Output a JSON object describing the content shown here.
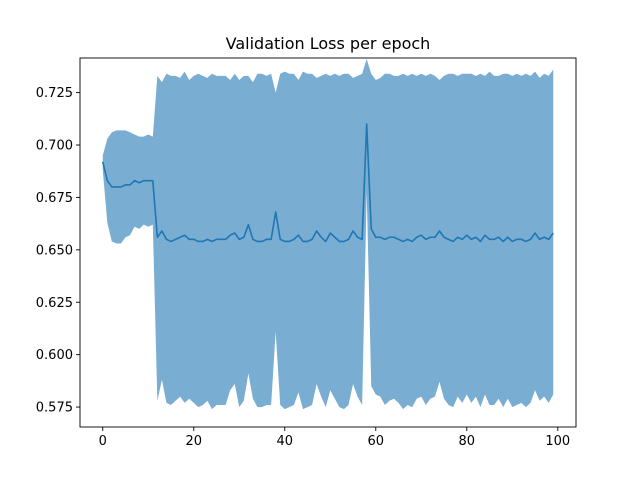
{
  "chart_data": {
    "type": "line",
    "title": "Validation Loss per epoch",
    "xlabel": "",
    "ylabel": "",
    "xlim": [
      -5,
      104
    ],
    "ylim": [
      0.5655,
      0.7415
    ],
    "xticks": [
      0,
      20,
      40,
      60,
      80,
      100
    ],
    "yticks": [
      0.575,
      0.6,
      0.625,
      0.65,
      0.675,
      0.7,
      0.725
    ],
    "ytick_labels": [
      "0.575",
      "0.600",
      "0.625",
      "0.650",
      "0.675",
      "0.700",
      "0.725"
    ],
    "grid": false,
    "legend": "none",
    "colors": {
      "line": "#1f77b4",
      "band": "#1f77b4",
      "band_alpha": 0.6
    },
    "series": [
      {
        "x": [
          0,
          1,
          2,
          3,
          4,
          5,
          6,
          7,
          8,
          9,
          10,
          11,
          12,
          13,
          14,
          15,
          16,
          17,
          18,
          19,
          20,
          21,
          22,
          23,
          24,
          25,
          26,
          27,
          28,
          29,
          30,
          31,
          32,
          33,
          34,
          35,
          36,
          37,
          38,
          39,
          40,
          41,
          42,
          43,
          44,
          45,
          46,
          47,
          48,
          49,
          50,
          51,
          52,
          53,
          54,
          55,
          56,
          57,
          58,
          59,
          60,
          61,
          62,
          63,
          64,
          65,
          66,
          67,
          68,
          69,
          70,
          71,
          72,
          73,
          74,
          75,
          76,
          77,
          78,
          79,
          80,
          81,
          82,
          83,
          84,
          85,
          86,
          87,
          88,
          89,
          90,
          91,
          92,
          93,
          94,
          95,
          96,
          97,
          98,
          99
        ],
        "mean": [
          0.692,
          0.683,
          0.68,
          0.68,
          0.68,
          0.681,
          0.681,
          0.683,
          0.682,
          0.683,
          0.683,
          0.683,
          0.656,
          0.659,
          0.655,
          0.654,
          0.655,
          0.656,
          0.657,
          0.655,
          0.655,
          0.654,
          0.654,
          0.655,
          0.654,
          0.655,
          0.655,
          0.655,
          0.657,
          0.658,
          0.655,
          0.656,
          0.662,
          0.655,
          0.654,
          0.654,
          0.655,
          0.655,
          0.668,
          0.655,
          0.654,
          0.654,
          0.655,
          0.657,
          0.654,
          0.654,
          0.655,
          0.659,
          0.656,
          0.654,
          0.658,
          0.656,
          0.654,
          0.654,
          0.655,
          0.659,
          0.656,
          0.655,
          0.71,
          0.66,
          0.656,
          0.656,
          0.655,
          0.656,
          0.656,
          0.655,
          0.654,
          0.655,
          0.654,
          0.656,
          0.657,
          0.655,
          0.656,
          0.656,
          0.659,
          0.656,
          0.655,
          0.654,
          0.656,
          0.655,
          0.657,
          0.655,
          0.656,
          0.654,
          0.657,
          0.655,
          0.655,
          0.656,
          0.654,
          0.656,
          0.654,
          0.655,
          0.655,
          0.654,
          0.655,
          0.658,
          0.655,
          0.656,
          0.655,
          0.658
        ],
        "upper": [
          0.695,
          0.703,
          0.706,
          0.707,
          0.707,
          0.707,
          0.706,
          0.705,
          0.704,
          0.704,
          0.705,
          0.704,
          0.733,
          0.73,
          0.734,
          0.733,
          0.733,
          0.732,
          0.735,
          0.731,
          0.733,
          0.734,
          0.733,
          0.732,
          0.734,
          0.733,
          0.733,
          0.733,
          0.731,
          0.734,
          0.731,
          0.733,
          0.733,
          0.73,
          0.734,
          0.734,
          0.733,
          0.734,
          0.725,
          0.734,
          0.735,
          0.734,
          0.734,
          0.731,
          0.735,
          0.734,
          0.734,
          0.732,
          0.733,
          0.734,
          0.733,
          0.734,
          0.733,
          0.734,
          0.734,
          0.732,
          0.733,
          0.734,
          0.741,
          0.734,
          0.731,
          0.732,
          0.734,
          0.734,
          0.733,
          0.733,
          0.734,
          0.733,
          0.734,
          0.733,
          0.734,
          0.733,
          0.734,
          0.733,
          0.731,
          0.733,
          0.734,
          0.734,
          0.733,
          0.734,
          0.734,
          0.734,
          0.733,
          0.734,
          0.733,
          0.735,
          0.733,
          0.733,
          0.734,
          0.734,
          0.733,
          0.734,
          0.733,
          0.734,
          0.733,
          0.735,
          0.732,
          0.734,
          0.733,
          0.736
        ],
        "lower": [
          0.688,
          0.663,
          0.654,
          0.653,
          0.653,
          0.656,
          0.657,
          0.661,
          0.66,
          0.662,
          0.661,
          0.662,
          0.578,
          0.588,
          0.577,
          0.576,
          0.578,
          0.58,
          0.577,
          0.579,
          0.577,
          0.575,
          0.576,
          0.578,
          0.574,
          0.576,
          0.576,
          0.576,
          0.583,
          0.586,
          0.575,
          0.578,
          0.591,
          0.579,
          0.575,
          0.575,
          0.576,
          0.576,
          0.611,
          0.576,
          0.574,
          0.575,
          0.576,
          0.582,
          0.574,
          0.575,
          0.576,
          0.586,
          0.58,
          0.575,
          0.583,
          0.579,
          0.575,
          0.574,
          0.576,
          0.586,
          0.58,
          0.576,
          0.678,
          0.585,
          0.581,
          0.58,
          0.576,
          0.578,
          0.579,
          0.577,
          0.574,
          0.576,
          0.575,
          0.579,
          0.58,
          0.576,
          0.579,
          0.58,
          0.587,
          0.579,
          0.576,
          0.575,
          0.58,
          0.577,
          0.581,
          0.577,
          0.58,
          0.575,
          0.581,
          0.576,
          0.576,
          0.579,
          0.575,
          0.579,
          0.575,
          0.576,
          0.577,
          0.575,
          0.577,
          0.583,
          0.578,
          0.58,
          0.577,
          0.581
        ]
      }
    ]
  }
}
